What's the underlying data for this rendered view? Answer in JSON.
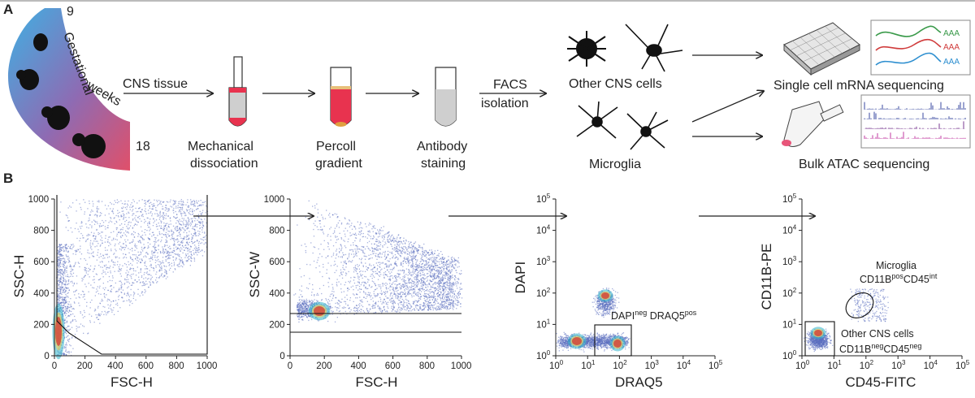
{
  "panel_a": {
    "label": "A",
    "weeks": {
      "start": "9",
      "end": "18",
      "word1": "Gestational",
      "word2": "weeks"
    },
    "steps": {
      "cns_tissue": "CNS tissue",
      "mech_1": "Mechanical",
      "mech_2": "dissociation",
      "percoll_1": "Percoll",
      "percoll_2": "gradient",
      "antibody_1": "Antibody",
      "antibody_2": "staining",
      "facs_1": "FACS",
      "facs_2": "isolation"
    },
    "cells": {
      "other": "Other CNS cells",
      "microglia": "Microglia"
    },
    "outputs": {
      "scrna": "Single cell mRNA sequencing",
      "atac": "Bulk ATAC sequencing",
      "aaa": "AAA"
    }
  },
  "panel_b": {
    "label": "B",
    "gates": {
      "p3_sup1": "neg",
      "p3_sup2": "pos",
      "p4_microglia": "Microglia",
      "p4_sup1": "pos",
      "p4_sup2": "int",
      "p4_other": "Other CNS cells",
      "p4_sup3": "neg",
      "p4_sup4": "neg"
    }
  },
  "colors": {
    "scatter": "#5b6fc0",
    "dense": "#c0392b",
    "tube_red": "#e8334f",
    "gradient_top": "#4aa8df",
    "gradient_bottom": "#d9546e"
  },
  "chart_data": [
    {
      "type": "scatter",
      "title": "",
      "xlabel": "FSC-H",
      "ylabel": "SSC-H",
      "xlim": [
        0,
        1000
      ],
      "ylim": [
        0,
        1000
      ],
      "xticks": [
        "0",
        "200",
        "400",
        "600",
        "800",
        "1000"
      ],
      "yticks": [
        "0",
        "200",
        "400",
        "600",
        "800",
        "1000"
      ]
    },
    {
      "type": "scatter",
      "title": "",
      "xlabel": "FSC-H",
      "ylabel": "SSC-W",
      "xlim": [
        0,
        1000
      ],
      "ylim": [
        0,
        1000
      ],
      "xticks": [
        "0",
        "200",
        "400",
        "600",
        "800",
        "1000"
      ],
      "yticks": [
        "0",
        "200",
        "400",
        "600",
        "800",
        "1000"
      ]
    },
    {
      "type": "scatter",
      "title": "",
      "xlabel": "DRAQ5",
      "ylabel": "DAPI",
      "scale": "log",
      "xlim": [
        1,
        100000
      ],
      "ylim": [
        1,
        100000
      ],
      "tick_base": "10",
      "tick_exps": [
        "0",
        "1",
        "2",
        "3",
        "4",
        "5"
      ],
      "gate_label": [
        "DAPI",
        "DRAQ5"
      ]
    },
    {
      "type": "scatter",
      "title": "",
      "xlabel": "CD45-FITC",
      "ylabel": "CD11B-PE",
      "scale": "log",
      "xlim": [
        1,
        100000
      ],
      "ylim": [
        1,
        100000
      ],
      "tick_base": "10",
      "tick_exps": [
        "0",
        "1",
        "2",
        "3",
        "4",
        "5"
      ],
      "gate_label": [
        "CD11B",
        "CD45",
        "CD11B",
        "CD45"
      ]
    }
  ]
}
